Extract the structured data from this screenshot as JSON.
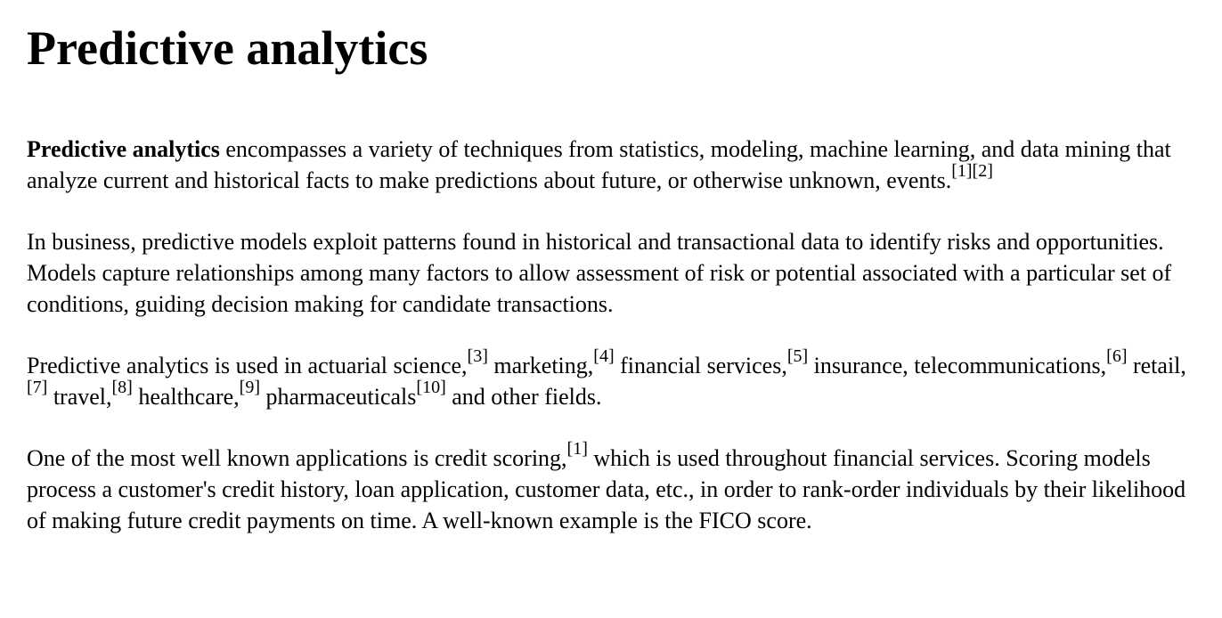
{
  "title": "Predictive analytics",
  "paragraphs": {
    "p1": {
      "lead": "Predictive analytics",
      "text": " encompasses a variety of techniques from statistics, modeling, machine learning, and data mining that analyze current and historical facts to make predictions about future, or otherwise unknown, events.",
      "refs": [
        "[1]",
        "[2]"
      ]
    },
    "p2": {
      "text": "In business, predictive models exploit patterns found in historical and transactional data to identify risks and opportunities. Models capture relationships among many factors to allow assessment of risk or potential associated with a particular set of conditions, guiding decision making for candidate transactions."
    },
    "p3": {
      "s0": "Predictive analytics is used in actuarial science,",
      "r0": "[3]",
      "s1": " marketing,",
      "r1": "[4]",
      "s2": " financial services,",
      "r2": "[5]",
      "s3": " insurance, telecommunications,",
      "r3": "[6]",
      "s4": " retail,",
      "r4": "[7]",
      "s5": " travel,",
      "r5": "[8]",
      "s6": " healthcare,",
      "r6": "[9]",
      "s7": " pharmaceuticals",
      "r7": "[10]",
      "s8": " and other fields."
    },
    "p4": {
      "s0": "One of the most well known applications is credit scoring,",
      "r0": "[1]",
      "s1": " which is used throughout financial services. Scoring models process a customer's credit history, loan application, customer data, etc., in order to rank-order individuals by their likelihood of making future credit payments on time. A well-known example is the FICO score."
    }
  }
}
